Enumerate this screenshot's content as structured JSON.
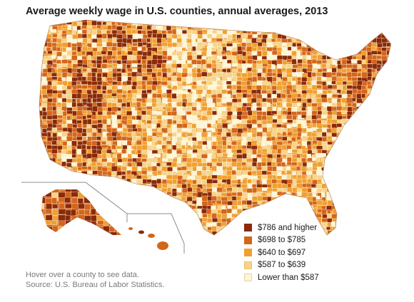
{
  "title": "Average weekly wage in U.S. counties, annual averages, 2013",
  "legend": {
    "items": [
      {
        "label": "$786 and higher",
        "color": "#8b2a08"
      },
      {
        "label": "$698 to $785",
        "color": "#d4661a"
      },
      {
        "label": "$640 to $697",
        "color": "#f0a030"
      },
      {
        "label": "$587 to $639",
        "color": "#f8d488"
      },
      {
        "label": "Lower than $587",
        "color": "#fdf5d5"
      }
    ]
  },
  "footer": {
    "hover_note": "Hover over a county to see data.",
    "source": "Source: U.S. Bureau of Labor Statistics."
  },
  "colors": {
    "county_border": "#ffffff",
    "inset_frame": "#8c8c8c"
  }
}
